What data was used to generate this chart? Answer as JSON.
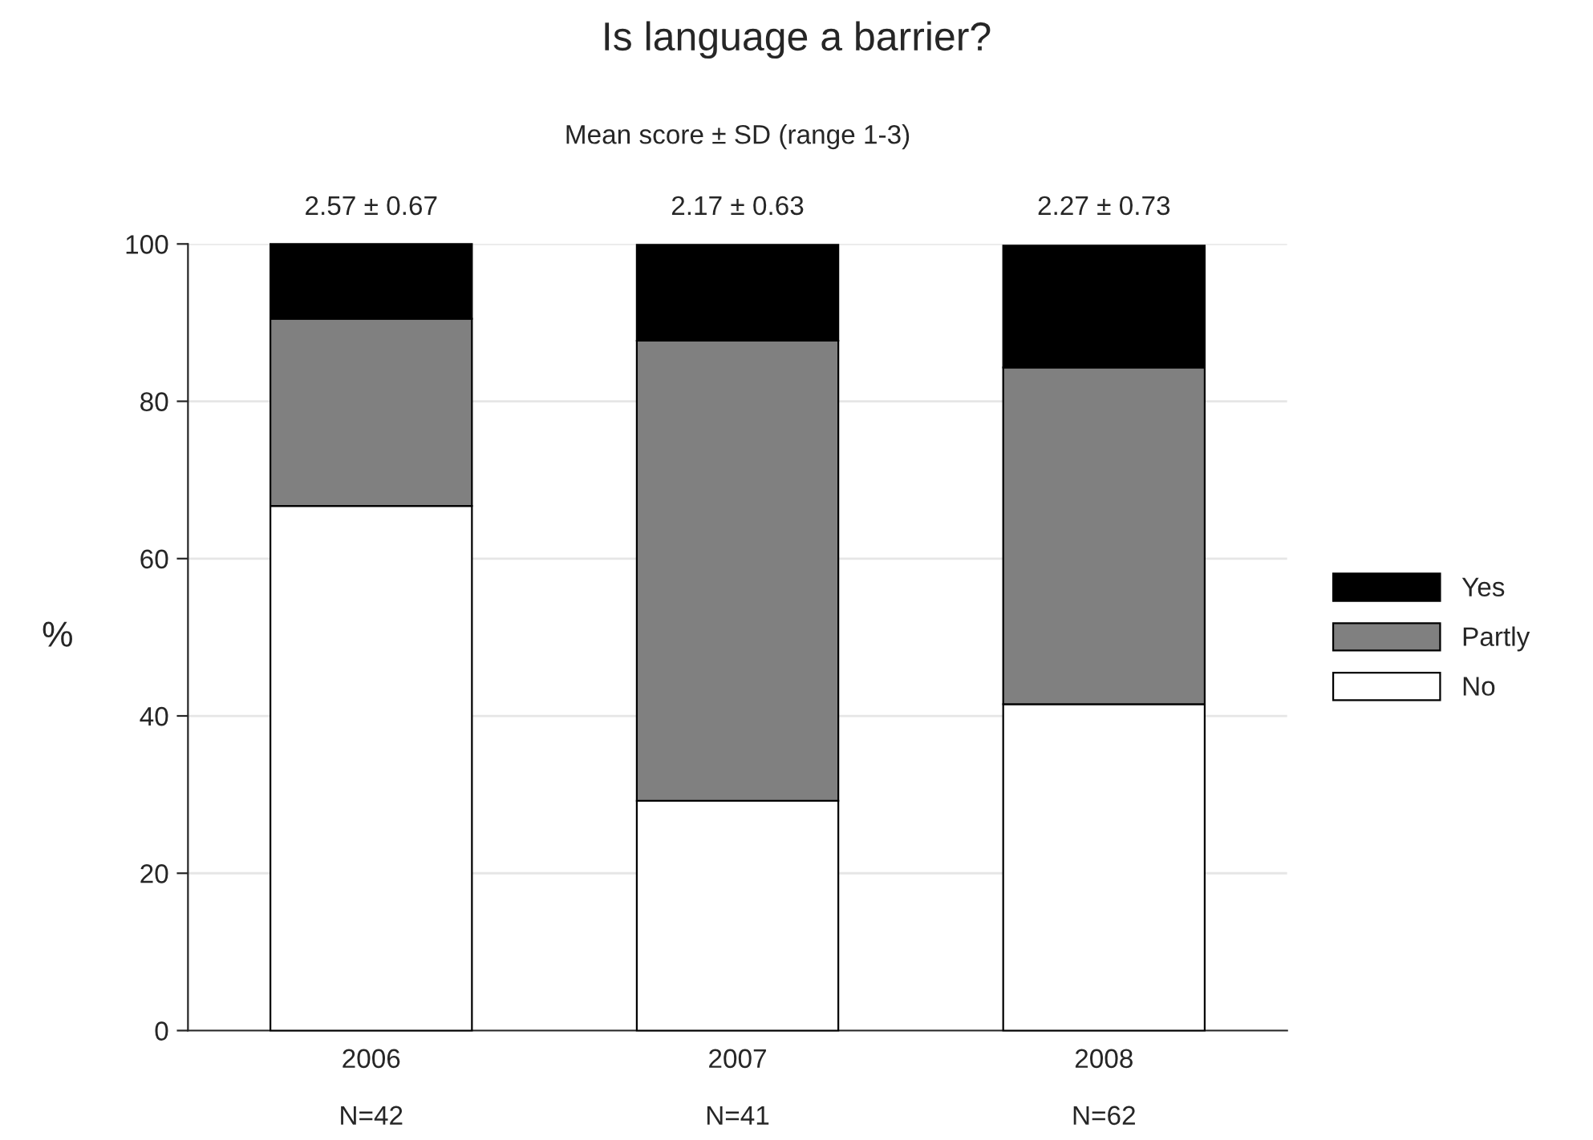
{
  "chart_data": {
    "type": "bar",
    "title": "Is language a barrier?",
    "subtitle": "Mean score ± SD (range 1-3)",
    "ylabel": "%",
    "categories": [
      "2006",
      "2007",
      "2008"
    ],
    "stacked": true,
    "series": [
      {
        "name": "No",
        "color": "#ffffff",
        "values": [
          66.7,
          29.2,
          41.5
        ]
      },
      {
        "name": "Partly",
        "color": "#808080",
        "values": [
          23.8,
          58.5,
          42.8
        ]
      },
      {
        "name": "Yes",
        "color": "#000000",
        "values": [
          9.5,
          12.2,
          15.5
        ]
      }
    ],
    "annotations": [
      "2.57 ± 0.67",
      "2.17 ± 0.63",
      "2.27 ± 0.73",
      "N=42",
      "N=41",
      "N=62"
    ],
    "ylim": [
      0,
      100
    ],
    "yticks": [
      0,
      20,
      40,
      60,
      80,
      100
    ],
    "grid": "y",
    "legend": "right"
  }
}
